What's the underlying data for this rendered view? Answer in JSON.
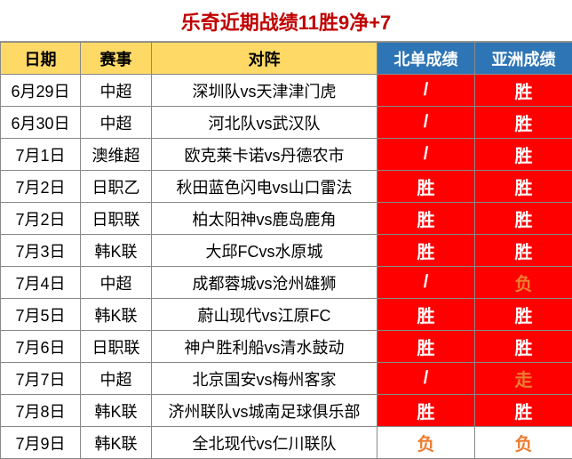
{
  "title": "乐奇近期战绩11胜9净+7",
  "title_color": "#c00000",
  "header_bg_yellow": "#ffd966",
  "header_bg_blue": "#2e75b6",
  "red_bg": "#ff0000",
  "orange_text": "#ed7d31",
  "columns": {
    "date": "日期",
    "league": "赛事",
    "match": "对阵",
    "bei": "北单成绩",
    "asia": "亚洲成绩"
  },
  "rows": [
    {
      "date": "6月29日",
      "league": "中超",
      "match": "深圳队vs天津津门虎",
      "bei": "/",
      "bei_bg": "red",
      "asia": "胜",
      "asia_bg": "red"
    },
    {
      "date": "6月30日",
      "league": "中超",
      "match": "河北队vs武汉队",
      "bei": "/",
      "bei_bg": "red",
      "asia": "胜",
      "asia_bg": "red"
    },
    {
      "date": "7月1日",
      "league": "澳维超",
      "match": "欧克莱卡诺vs丹德农市",
      "bei": "/",
      "bei_bg": "red",
      "asia": "胜",
      "asia_bg": "red"
    },
    {
      "date": "7月2日",
      "league": "日职乙",
      "match": "秋田蓝色闪电vs山口雷法",
      "bei": "胜",
      "bei_bg": "red",
      "asia": "胜",
      "asia_bg": "red"
    },
    {
      "date": "7月2日",
      "league": "日职联",
      "match": "柏太阳神vs鹿岛鹿角",
      "bei": "胜",
      "bei_bg": "red",
      "asia": "胜",
      "asia_bg": "red"
    },
    {
      "date": "7月3日",
      "league": "韩K联",
      "match": "大邱FCvs水原城",
      "bei": "胜",
      "bei_bg": "red",
      "asia": "胜",
      "asia_bg": "red"
    },
    {
      "date": "7月4日",
      "league": "中超",
      "match": "成都蓉城vs沧州雄狮",
      "bei": "/",
      "bei_bg": "red",
      "asia": "负",
      "asia_bg": "red",
      "asia_color": "orange"
    },
    {
      "date": "7月5日",
      "league": "韩K联",
      "match": "蔚山现代vs江原FC",
      "bei": "胜",
      "bei_bg": "red",
      "asia": "胜",
      "asia_bg": "red"
    },
    {
      "date": "7月6日",
      "league": "日职联",
      "match": "神户胜利船vs清水鼓动",
      "bei": "胜",
      "bei_bg": "red",
      "asia": "胜",
      "asia_bg": "red"
    },
    {
      "date": "7月7日",
      "league": "中超",
      "match": "北京国安vs梅州客家",
      "bei": "/",
      "bei_bg": "red",
      "asia": "走",
      "asia_bg": "red",
      "asia_color": "orange"
    },
    {
      "date": "7月8日",
      "league": "韩K联",
      "match": "济州联队vs城南足球俱乐部",
      "bei": "胜",
      "bei_bg": "red",
      "asia": "胜",
      "asia_bg": "red"
    },
    {
      "date": "7月9日",
      "league": "韩K联",
      "match": "全北现代vs仁川联队",
      "bei": "负",
      "bei_bg": "none",
      "bei_color": "orange",
      "asia": "负",
      "asia_bg": "none",
      "asia_color": "orange"
    }
  ]
}
